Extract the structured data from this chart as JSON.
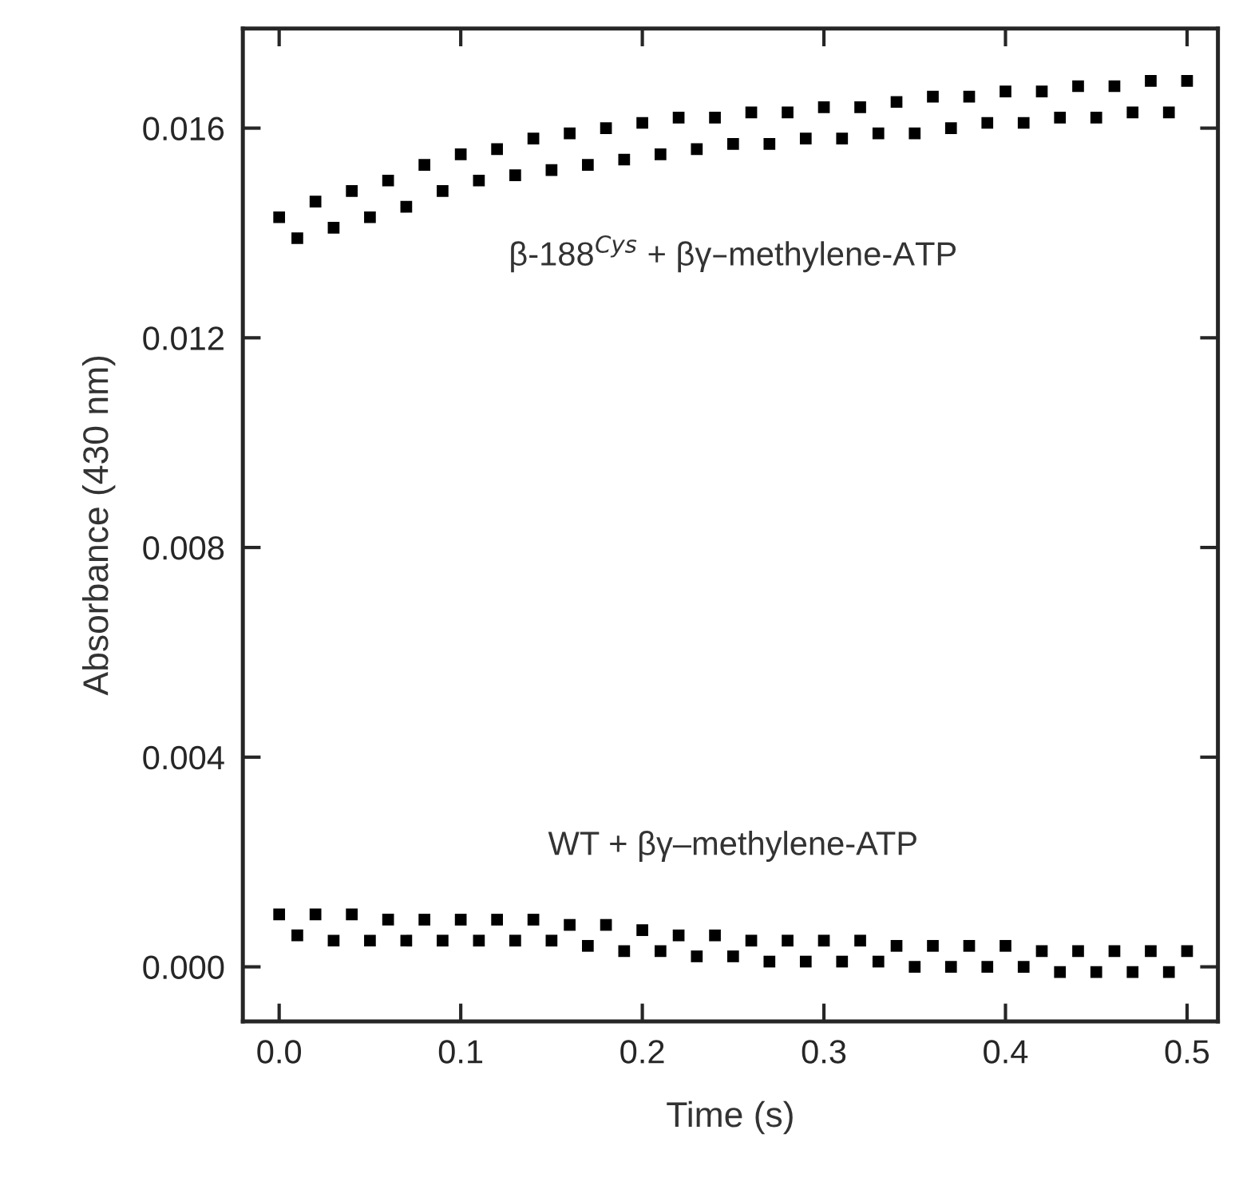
{
  "chart_data": {
    "type": "scatter",
    "xlabel": "Time (s)",
    "ylabel": "Absorbance (430 nm)",
    "xlim": [
      -0.02,
      0.517
    ],
    "ylim": [
      -0.00104,
      0.0179
    ],
    "xticks": [
      {
        "value": 0,
        "label": "0.0"
      },
      {
        "value": 0.1,
        "label": "0.1"
      },
      {
        "value": 0.2,
        "label": "0.2"
      },
      {
        "value": 0.3,
        "label": "0.3"
      },
      {
        "value": 0.4,
        "label": "0.4"
      },
      {
        "value": 0.5,
        "label": "0.5"
      }
    ],
    "yticks": [
      {
        "value": 0,
        "label": "0.000"
      },
      {
        "value": 0.004,
        "label": "0.004"
      },
      {
        "value": 0.008,
        "label": "0.008"
      },
      {
        "value": 0.012,
        "label": "0.012"
      },
      {
        "value": 0.016,
        "label": "0.016"
      }
    ],
    "x": [
      0,
      0.01,
      0.02,
      0.03,
      0.04,
      0.05,
      0.06,
      0.07,
      0.08,
      0.09,
      0.1,
      0.11,
      0.12,
      0.13,
      0.14,
      0.15,
      0.16,
      0.17,
      0.18,
      0.19,
      0.2,
      0.21,
      0.22,
      0.23,
      0.24,
      0.25,
      0.26,
      0.27,
      0.28,
      0.29,
      0.3,
      0.31,
      0.32,
      0.33,
      0.34,
      0.35,
      0.36,
      0.37,
      0.38,
      0.39,
      0.4,
      0.41,
      0.42,
      0.43,
      0.44,
      0.45,
      0.46,
      0.47,
      0.48,
      0.49,
      0.5
    ],
    "marker": "square",
    "grid": false,
    "legend": false,
    "series": [
      {
        "name": "β-188$^{Cys}$ + βγ–methylene-ATP",
        "color": "#000000",
        "values": [
          0.0143,
          0.0139,
          0.0146,
          0.0141,
          0.0148,
          0.0143,
          0.015,
          0.0145,
          0.0153,
          0.0148,
          0.0155,
          0.015,
          0.0156,
          0.0151,
          0.0158,
          0.0152,
          0.0159,
          0.0153,
          0.016,
          0.0154,
          0.0161,
          0.0155,
          0.0162,
          0.0156,
          0.0162,
          0.0157,
          0.0163,
          0.0157,
          0.0163,
          0.0158,
          0.0164,
          0.0158,
          0.0164,
          0.0159,
          0.0165,
          0.0159,
          0.0166,
          0.016,
          0.0166,
          0.0161,
          0.0167,
          0.0161,
          0.0167,
          0.0162,
          0.0168,
          0.0162,
          0.0168,
          0.0163,
          0.0169,
          0.0163,
          0.0169
        ]
      },
      {
        "name": "WT + βγ–methylene-ATP",
        "color": "#000000",
        "values": [
          0.001,
          0.0006,
          0.001,
          0.0005,
          0.001,
          0.0005,
          0.0009,
          0.0005,
          0.0009,
          0.0005,
          0.0009,
          0.0005,
          0.0009,
          0.0005,
          0.0009,
          0.0005,
          0.0008,
          0.0004,
          0.0008,
          0.0003,
          0.0007,
          0.0003,
          0.0006,
          0.0002,
          0.0006,
          0.0002,
          0.0005,
          0.0001,
          0.0005,
          0.0001,
          0.0005,
          0.0001,
          0.0005,
          0.0001,
          0.0004,
          0.0,
          0.0004,
          0.0,
          0.0004,
          0.0,
          0.0004,
          0.0,
          0.0003,
          -0.0001,
          0.0003,
          -0.0001,
          0.0003,
          -0.0001,
          0.0003,
          -0.0001,
          0.0003
        ]
      }
    ]
  }
}
